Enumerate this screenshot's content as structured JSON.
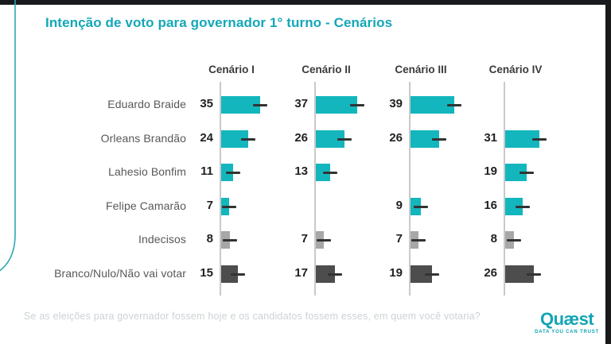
{
  "page": {
    "title": "Intenção de voto para governador 1° turno - Cenários",
    "question": "Se as eleições para governador fossem hoje e os candidatos fossem esses, em quem você votaria?"
  },
  "branding": {
    "logo_text": "Quæst",
    "tagline": "DATA YOU CAN TRUST",
    "brand_color": "#12a4b4"
  },
  "colors": {
    "teal": "#14b6bd",
    "gray": "#a7a7a7",
    "dark": "#4d4d4d",
    "axis": "#c9c9c9",
    "title": "#13a7b7"
  },
  "chart_data": {
    "type": "bar",
    "orientation": "horizontal",
    "title": "Intenção de voto para governador 1° turno - Cenários",
    "subtitle": "Se as eleições para governador fossem hoje e os candidatos fossem esses, em quem você votaria?",
    "categories": [
      "Eduardo Braide",
      "Orleans Brandão",
      "Lahesio Bonfim",
      "Felipe Camarão",
      "Indecisos",
      "Branco/Nulo/Não vai votar"
    ],
    "series": [
      {
        "name": "Cenário I",
        "values": [
          35,
          24,
          11,
          7,
          8,
          15
        ]
      },
      {
        "name": "Cenário II",
        "values": [
          37,
          26,
          13,
          null,
          7,
          17
        ]
      },
      {
        "name": "Cenário III",
        "values": [
          39,
          26,
          null,
          9,
          7,
          19
        ]
      },
      {
        "name": "Cenário IV",
        "values": [
          null,
          31,
          19,
          16,
          8,
          26
        ]
      }
    ],
    "category_colors": [
      "teal",
      "teal",
      "teal",
      "teal",
      "gray",
      "dark"
    ],
    "error_bars": true,
    "xlim": [
      0,
      45
    ],
    "grid": false,
    "legend": "none"
  }
}
